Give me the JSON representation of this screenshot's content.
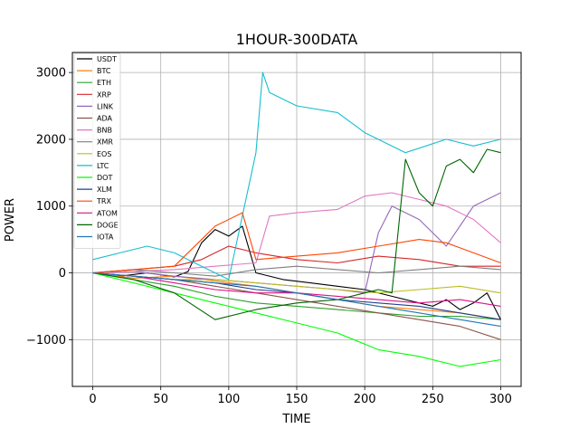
{
  "chart_data": {
    "type": "line",
    "title": "1HOUR-300DATA",
    "xlabel": "TIME",
    "ylabel": "POWER",
    "xlim": [
      -15,
      315
    ],
    "ylim": [
      -1700,
      3300
    ],
    "xticks": [
      0,
      50,
      100,
      150,
      200,
      250,
      300
    ],
    "yticks": [
      -1000,
      0,
      1000,
      2000,
      3000
    ],
    "xtick_labels": [
      "0",
      "50",
      "100",
      "150",
      "200",
      "250",
      "300"
    ],
    "ytick_labels": [
      "−1000",
      "0",
      "1000",
      "2000",
      "3000"
    ],
    "grid": true,
    "legend_position": "top-left",
    "series": [
      {
        "name": "USDT",
        "color": "#000000",
        "x": [
          0,
          20,
          40,
          60,
          70,
          80,
          90,
          100,
          110,
          120,
          140,
          160,
          180,
          200,
          220,
          240,
          250,
          260,
          270,
          280,
          290,
          300
        ],
        "y": [
          0,
          -50,
          0,
          -60,
          20,
          450,
          650,
          550,
          700,
          0,
          -100,
          -150,
          -200,
          -250,
          -350,
          -450,
          -500,
          -400,
          -550,
          -450,
          -300,
          -700
        ]
      },
      {
        "name": "BTC",
        "color": "#ff7f0e",
        "x": [
          0,
          30,
          60,
          90,
          120,
          150,
          180,
          210,
          240,
          270,
          300
        ],
        "y": [
          0,
          -80,
          -50,
          -120,
          -200,
          -300,
          -400,
          -500,
          -550,
          -600,
          -700
        ]
      },
      {
        "name": "ETH",
        "color": "#2ca02c",
        "x": [
          0,
          30,
          60,
          90,
          120,
          150,
          180,
          210,
          240,
          270,
          300
        ],
        "y": [
          0,
          -100,
          -200,
          -350,
          -450,
          -500,
          -550,
          -600,
          -650,
          -650,
          -700
        ]
      },
      {
        "name": "XRP",
        "color": "#d62728",
        "x": [
          0,
          30,
          60,
          80,
          100,
          120,
          150,
          180,
          210,
          240,
          270,
          300
        ],
        "y": [
          0,
          50,
          100,
          200,
          400,
          300,
          200,
          150,
          250,
          200,
          100,
          100
        ]
      },
      {
        "name": "LINK",
        "color": "#9467bd",
        "x": [
          0,
          30,
          60,
          90,
          120,
          150,
          180,
          200,
          210,
          220,
          240,
          260,
          280,
          300
        ],
        "y": [
          0,
          20,
          -50,
          -100,
          -150,
          -200,
          -250,
          -300,
          600,
          1000,
          800,
          400,
          1000,
          1200
        ]
      },
      {
        "name": "ADA",
        "color": "#8c564b",
        "x": [
          0,
          30,
          60,
          90,
          120,
          150,
          180,
          210,
          240,
          270,
          300
        ],
        "y": [
          0,
          -50,
          -100,
          -200,
          -300,
          -400,
          -500,
          -600,
          -700,
          -800,
          -1000
        ]
      },
      {
        "name": "BNB",
        "color": "#e377c2",
        "x": [
          0,
          30,
          60,
          90,
          120,
          130,
          150,
          180,
          200,
          220,
          240,
          260,
          280,
          300
        ],
        "y": [
          0,
          20,
          50,
          100,
          150,
          850,
          900,
          950,
          1150,
          1200,
          1100,
          1000,
          800,
          450
        ]
      },
      {
        "name": "XMR",
        "color": "#7f7f7f",
        "x": [
          0,
          30,
          60,
          90,
          120,
          150,
          180,
          210,
          240,
          270,
          300
        ],
        "y": [
          0,
          50,
          0,
          -50,
          50,
          100,
          50,
          0,
          50,
          100,
          50
        ]
      },
      {
        "name": "EOS",
        "color": "#bcbd22",
        "x": [
          0,
          30,
          60,
          90,
          120,
          150,
          180,
          210,
          240,
          270,
          300
        ],
        "y": [
          0,
          -50,
          -100,
          -100,
          -150,
          -200,
          -250,
          -300,
          -250,
          -200,
          -300
        ]
      },
      {
        "name": "LTC",
        "color": "#17becf",
        "x": [
          0,
          20,
          40,
          60,
          80,
          100,
          120,
          125,
          130,
          150,
          180,
          200,
          230,
          260,
          280,
          300
        ],
        "y": [
          200,
          300,
          400,
          300,
          100,
          -100,
          1800,
          3000,
          2700,
          2500,
          2400,
          2100,
          1800,
          2000,
          1900,
          2000
        ]
      },
      {
        "name": "DOT",
        "color": "#00ff00",
        "x": [
          0,
          30,
          60,
          90,
          120,
          150,
          180,
          210,
          240,
          270,
          300
        ],
        "y": [
          0,
          -150,
          -300,
          -450,
          -600,
          -750,
          -900,
          -1150,
          -1250,
          -1400,
          -1300
        ]
      },
      {
        "name": "XLM",
        "color": "#1f3f8f",
        "x": [
          0,
          30,
          60,
          90,
          120,
          150,
          180,
          210,
          240,
          270,
          300
        ],
        "y": [
          0,
          -50,
          -100,
          -150,
          -250,
          -300,
          -400,
          -450,
          -500,
          -600,
          -700
        ]
      },
      {
        "name": "TRX",
        "color": "#ff4500",
        "x": [
          0,
          30,
          60,
          90,
          110,
          120,
          150,
          180,
          210,
          240,
          260,
          280,
          300
        ],
        "y": [
          0,
          50,
          100,
          700,
          900,
          200,
          250,
          300,
          400,
          500,
          450,
          300,
          150
        ]
      },
      {
        "name": "ATOM",
        "color": "#dd1188",
        "x": [
          0,
          30,
          60,
          90,
          120,
          150,
          180,
          210,
          240,
          270,
          300
        ],
        "y": [
          0,
          -50,
          -150,
          -250,
          -300,
          -300,
          -350,
          -400,
          -450,
          -400,
          -500
        ]
      },
      {
        "name": "DOGE",
        "color": "#006400",
        "x": [
          0,
          30,
          60,
          90,
          120,
          150,
          180,
          200,
          210,
          220,
          230,
          240,
          250,
          260,
          270,
          280,
          290,
          300
        ],
        "y": [
          0,
          -100,
          -300,
          -700,
          -550,
          -450,
          -400,
          -300,
          -250,
          -300,
          1700,
          1200,
          1000,
          1600,
          1700,
          1500,
          1850,
          1800
        ]
      },
      {
        "name": "IOTA",
        "color": "#1f77b4",
        "x": [
          0,
          30,
          60,
          90,
          120,
          150,
          180,
          210,
          240,
          270,
          300
        ],
        "y": [
          0,
          -50,
          -100,
          -150,
          -200,
          -300,
          -400,
          -500,
          -600,
          -700,
          -800
        ]
      }
    ]
  }
}
